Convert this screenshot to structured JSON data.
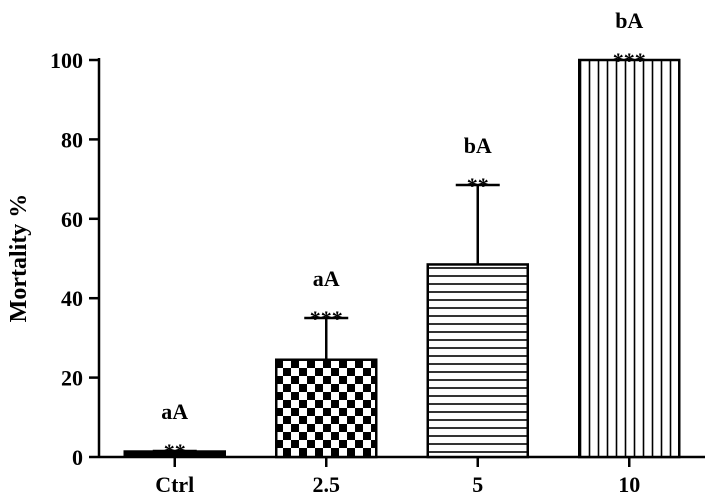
{
  "chart_data": {
    "type": "bar",
    "categories": [
      "Ctrl",
      "2.5",
      "5",
      "10"
    ],
    "values": [
      1,
      24.5,
      48.5,
      100
    ],
    "error_upper": [
      1.5,
      35,
      68.5,
      100
    ],
    "annotations": [
      {
        "group": "aA",
        "significance": "**"
      },
      {
        "group": "aA",
        "significance": "***"
      },
      {
        "group": "bA",
        "significance": "**"
      },
      {
        "group": "bA",
        "significance": "***"
      }
    ],
    "patterns": [
      "solid",
      "checkerboard",
      "horizontal-lines",
      "vertical-lines"
    ],
    "xlabel": "",
    "ylabel": "Mortality %",
    "ylim": [
      0,
      100
    ],
    "yticks": [
      "0",
      "20",
      "40",
      "60",
      "80",
      "100"
    ],
    "grid": false,
    "colors": {
      "bar_stroke": "#000000",
      "bar_fill": "#ffffff",
      "pattern": "#000000"
    }
  }
}
